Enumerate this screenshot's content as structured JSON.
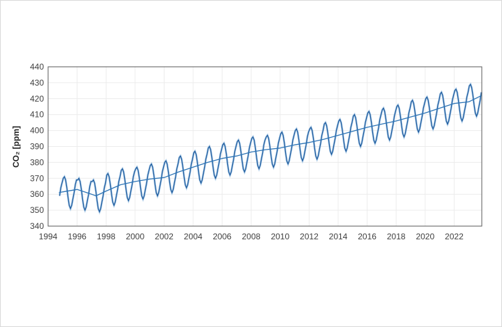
{
  "chart_data": {
    "type": "line",
    "title": "",
    "xlabel": "",
    "ylabel": "CO₂ [ppm]",
    "xlim": [
      1994,
      2024
    ],
    "ylim": [
      340,
      440
    ],
    "xticks": [
      "1994",
      "1996",
      "1998",
      "2000",
      "2002",
      "2004",
      "2006",
      "2008",
      "2010",
      "2012",
      "2014",
      "2016",
      "2018",
      "2020",
      "2022"
    ],
    "yticks": [
      "340",
      "350",
      "360",
      "370",
      "380",
      "390",
      "400",
      "410",
      "420",
      "430",
      "440"
    ],
    "grid": true,
    "legend": "none",
    "colors": {
      "raw": "#9dc3e6",
      "monthly": "#1f5c9e",
      "trend": "#2e75b6",
      "axis": "#595959",
      "grid": "#ececec"
    },
    "monthly": {
      "start": "1994-10",
      "values": [
        359,
        364,
        367,
        370,
        371,
        369,
        364,
        358,
        353,
        351,
        353,
        357,
        361,
        366,
        369,
        369,
        370,
        368,
        363,
        357,
        352,
        350,
        352,
        356,
        360,
        365,
        368,
        368,
        369,
        367,
        362,
        356,
        351,
        349,
        351,
        355,
        359,
        364,
        367,
        372,
        373,
        371,
        366,
        360,
        355,
        353,
        355,
        359,
        363,
        368,
        371,
        375,
        376,
        374,
        369,
        363,
        358,
        356,
        358,
        362,
        366,
        371,
        374,
        376,
        377,
        375,
        370,
        364,
        359,
        357,
        359,
        363,
        367,
        372,
        375,
        378,
        379,
        377,
        372,
        366,
        361,
        359,
        361,
        365,
        369,
        374,
        377,
        380,
        381,
        379,
        374,
        368,
        363,
        361,
        363,
        367,
        371,
        376,
        379,
        383,
        384,
        382,
        377,
        371,
        366,
        364,
        366,
        370,
        374,
        379,
        382,
        386,
        387,
        385,
        380,
        374,
        369,
        367,
        369,
        373,
        377,
        382,
        385,
        389,
        390,
        388,
        383,
        377,
        372,
        370,
        372,
        376,
        380,
        385,
        388,
        391,
        392,
        390,
        385,
        379,
        374,
        372,
        374,
        378,
        382,
        387,
        390,
        393,
        394,
        392,
        387,
        381,
        376,
        374,
        376,
        380,
        384,
        389,
        392,
        395,
        396,
        394,
        389,
        383,
        378,
        376,
        378,
        382,
        386,
        391,
        394,
        396,
        397,
        395,
        390,
        384,
        379,
        377,
        379,
        383,
        387,
        392,
        395,
        398,
        399,
        397,
        392,
        386,
        381,
        379,
        381,
        385,
        389,
        394,
        397,
        400,
        401,
        399,
        394,
        388,
        383,
        381,
        383,
        387,
        391,
        396,
        399,
        401,
        402,
        400,
        395,
        389,
        384,
        382,
        384,
        388,
        392,
        397,
        400,
        404,
        405,
        403,
        398,
        392,
        387,
        385,
        387,
        391,
        395,
        400,
        403,
        406,
        407,
        405,
        400,
        394,
        389,
        387,
        389,
        393,
        397,
        402,
        405,
        409,
        410,
        408,
        403,
        397,
        392,
        390,
        392,
        396,
        400,
        405,
        408,
        411,
        412,
        410,
        405,
        399,
        394,
        392,
        394,
        398,
        402,
        407,
        410,
        413,
        414,
        412,
        407,
        401,
        396,
        394,
        396,
        400,
        404,
        409,
        412,
        415,
        416,
        414,
        409,
        403,
        398,
        396,
        398,
        402,
        406,
        411,
        414,
        418,
        419,
        417,
        412,
        406,
        401,
        399,
        401,
        405,
        409,
        414,
        417,
        420,
        421,
        419,
        414,
        408,
        403,
        401,
        403,
        407,
        411,
        416,
        419,
        423,
        424,
        422,
        417,
        411,
        406,
        404,
        406,
        410,
        414,
        419,
        422,
        425,
        426,
        424,
        419,
        413,
        408,
        406,
        408,
        412,
        416,
        421,
        424,
        428,
        429,
        427,
        422,
        416,
        411,
        409,
        411,
        415,
        419,
        424
      ]
    },
    "trend": {
      "x": [
        1994.75,
        1995,
        1996,
        1997,
        1997.3,
        1998,
        1999,
        2000,
        2001,
        2002,
        2003,
        2004,
        2005,
        2006,
        2007,
        2008,
        2009,
        2010,
        2011,
        2012,
        2013,
        2014,
        2015,
        2016,
        2017,
        2018,
        2019,
        2020,
        2021,
        2022,
        2023,
        2023.9
      ],
      "y": [
        361,
        361.5,
        363,
        360,
        359,
        362,
        366,
        368,
        369.5,
        370.5,
        374,
        377,
        380,
        382.5,
        384,
        386.5,
        388,
        389,
        391,
        392.5,
        394.5,
        397,
        399.5,
        402,
        404,
        406,
        408.5,
        411,
        414,
        417,
        418,
        422
      ]
    }
  }
}
